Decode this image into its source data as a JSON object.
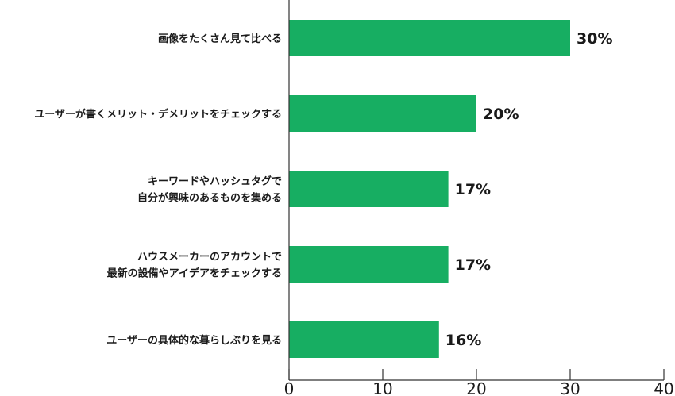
{
  "chart_data": {
    "type": "bar",
    "orientation": "horizontal",
    "title": "",
    "xlabel": "",
    "ylabel": "",
    "xlim": [
      0,
      40
    ],
    "x_ticks": [
      0,
      10,
      20,
      30,
      40
    ],
    "grid": false,
    "bar_color": "#17ae62",
    "categories": [
      [
        "画像をたくさん見て比べる"
      ],
      [
        "ユーザーが書くメリット・デメリットをチェックする"
      ],
      [
        "キーワードやハッシュタグで",
        "自分が興味のあるものを集める"
      ],
      [
        "ハウスメーカーのアカウントで",
        "最新の設備やアイデアをチェックする"
      ],
      [
        "ユーザーの具体的な暮らしぶりを見る"
      ]
    ],
    "values": [
      30,
      20,
      17,
      17,
      16
    ],
    "value_labels": [
      "30%",
      "20%",
      "17%",
      "17%",
      "16%"
    ]
  }
}
